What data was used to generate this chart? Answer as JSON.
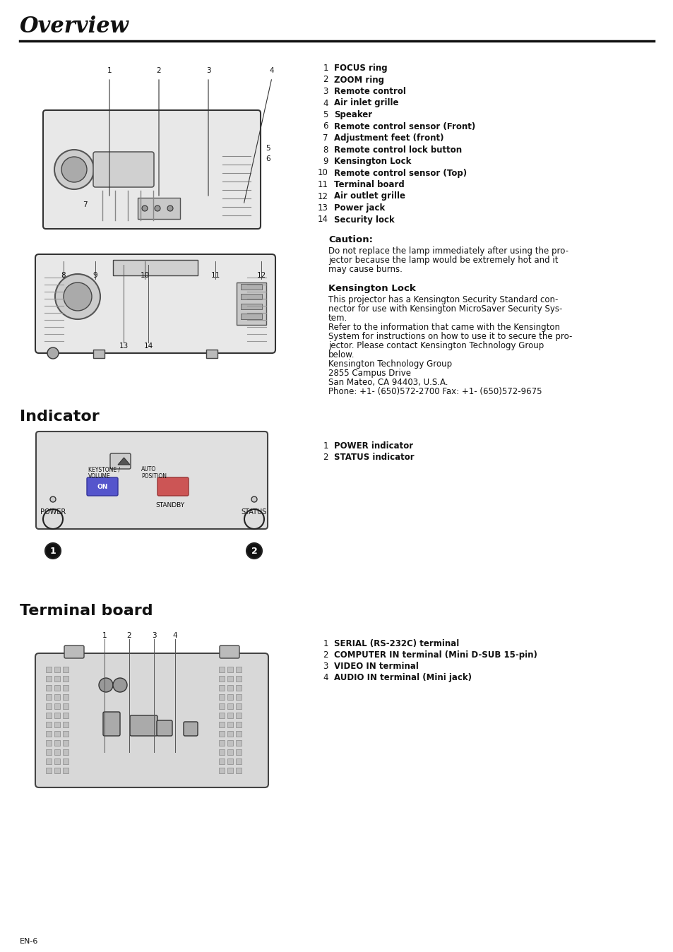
{
  "page_title": "Overview",
  "bg_color": "#ffffff",
  "title_font_size": 22,
  "body_font_size": 8.5,
  "overview_items": [
    {
      "num": "1",
      "bold": "FOCUS ring"
    },
    {
      "num": "2",
      "bold": "ZOOM ring"
    },
    {
      "num": "3",
      "bold": "Remote control"
    },
    {
      "num": "4",
      "bold": "Air inlet grille"
    },
    {
      "num": "5",
      "bold": "Speaker"
    },
    {
      "num": "6",
      "bold": "Remote control sensor (Front)"
    },
    {
      "num": "7",
      "bold": "Adjustment feet (front)"
    },
    {
      "num": "8",
      "bold": "Remote control lock button"
    },
    {
      "num": "9",
      "bold": "Kensington Lock"
    },
    {
      "num": "10",
      "bold": "Remote control sensor (Top)"
    },
    {
      "num": "11",
      "bold": "Terminal board"
    },
    {
      "num": "12",
      "bold": "Air outlet grille"
    },
    {
      "num": "13",
      "bold": "Power jack"
    },
    {
      "num": "14",
      "bold": "Security lock"
    }
  ],
  "caution_title": "Caution:",
  "caution_text": "Do not replace the lamp immediately after using the projector because the lamp would be extremely hot and it may cause burns.",
  "kensington_title": "Kensington Lock",
  "kensington_lines": [
    "This projector has a Kensington Security Standard con-",
    "nector for use with Kensington MicroSaver Security Sys-",
    "tem.",
    "Refer to the information that came with the Kensington",
    "System for instructions on how to use it to secure the pro-",
    "jector. Please contact Kensington Technology Group",
    "below.",
    "Kensington Technology Group",
    "2855 Campus Drive",
    "San Mateo, CA 94403, U.S.A.",
    "Phone: +1- (650)572-2700 Fax: +1- (650)572-9675"
  ],
  "indicator_title": "Indicator",
  "indicator_items": [
    {
      "num": "1",
      "bold": "POWER indicator"
    },
    {
      "num": "2",
      "bold": "STATUS indicator"
    }
  ],
  "terminal_title": "Terminal board",
  "terminal_items": [
    {
      "num": "1",
      "bold": "SERIAL (RS-232C) terminal"
    },
    {
      "num": "2",
      "bold": "COMPUTER IN terminal (Mini D-SUB 15-pin)"
    },
    {
      "num": "3",
      "bold": "VIDEO IN terminal"
    },
    {
      "num": "4",
      "bold": "AUDIO IN terminal (Mini jack)"
    }
  ],
  "footer_text": "EN-6"
}
